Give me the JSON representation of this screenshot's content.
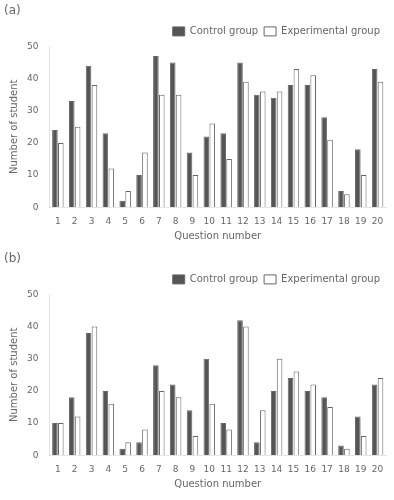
{
  "chart_data": [
    {
      "type": "bar",
      "title": "(a)",
      "categories": [
        "1",
        "2",
        "3",
        "4",
        "5",
        "6",
        "7",
        "8",
        "9",
        "10",
        "11",
        "12",
        "13",
        "14",
        "15",
        "16",
        "17",
        "18",
        "19",
        "20"
      ],
      "series": [
        {
          "name": "Control group",
          "color": "#555555",
          "values": [
            24,
            33,
            44,
            23,
            2,
            10,
            47,
            45,
            17,
            22,
            23,
            45,
            35,
            34,
            38,
            38,
            28,
            5,
            18,
            43
          ]
        },
        {
          "name": "Experimental group",
          "color": "#ffffff",
          "values": [
            20,
            25,
            38,
            12,
            5,
            17,
            35,
            35,
            10,
            26,
            15,
            39,
            36,
            36,
            43,
            41,
            21,
            4,
            10,
            39
          ]
        }
      ],
      "x_label": "Question number",
      "y_label": "Number of student",
      "ylim": [
        0,
        50
      ],
      "yticks": [
        0,
        10,
        20,
        30,
        40,
        50
      ],
      "grid": false,
      "legend": "upper right"
    },
    {
      "type": "bar",
      "title": "(b)",
      "categories": [
        "1",
        "2",
        "3",
        "4",
        "5",
        "6",
        "7",
        "8",
        "9",
        "10",
        "11",
        "12",
        "13",
        "14",
        "15",
        "16",
        "17",
        "18",
        "19",
        "20"
      ],
      "series": [
        {
          "name": "Control group",
          "color": "#555555",
          "values": [
            10,
            18,
            38,
            20,
            2,
            4,
            28,
            22,
            14,
            30,
            10,
            42,
            4,
            20,
            24,
            20,
            18,
            3,
            12,
            22
          ]
        },
        {
          "name": "Experimental group",
          "color": "#ffffff",
          "values": [
            10,
            12,
            40,
            16,
            4,
            8,
            20,
            18,
            6,
            16,
            8,
            40,
            14,
            30,
            26,
            22,
            15,
            2,
            6,
            24
          ]
        }
      ],
      "x_label": "Question number",
      "y_label": "Number of student",
      "ylim": [
        0,
        50
      ],
      "yticks": [
        0,
        10,
        20,
        30,
        40,
        50
      ],
      "grid": false,
      "legend": "upper right"
    }
  ]
}
